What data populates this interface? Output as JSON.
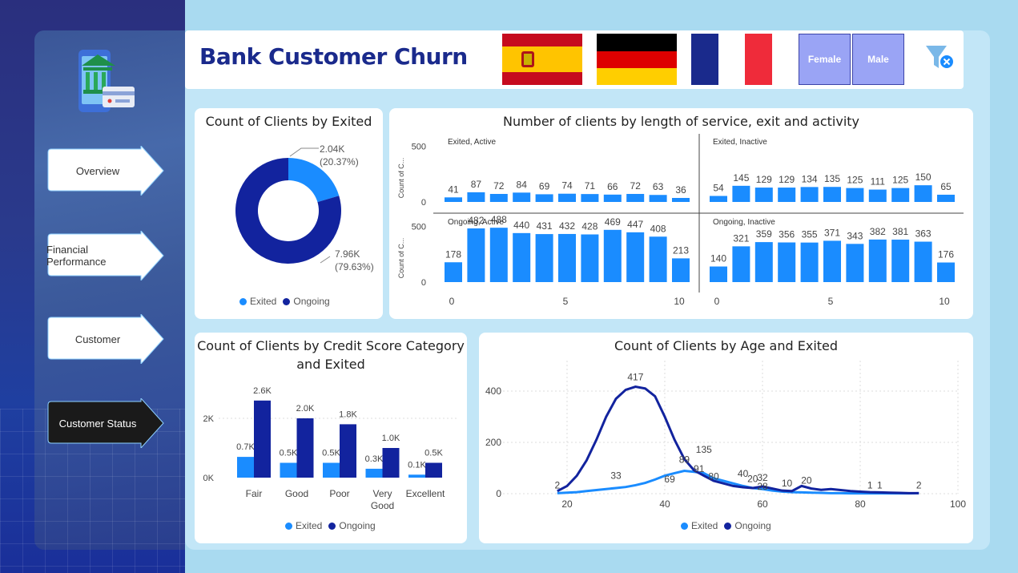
{
  "header": {
    "title": "Bank Customer Churn"
  },
  "slicers": {
    "female": "Female",
    "male": "Male"
  },
  "nav": [
    {
      "label": "Overview"
    },
    {
      "label": "Financial Performance"
    },
    {
      "label": "Customer"
    },
    {
      "label": "Customer Status"
    }
  ],
  "colors": {
    "exited": "#1a8cff",
    "ongoing": "#12239e"
  },
  "legend": {
    "exited": "Exited",
    "ongoing": "Ongoing"
  },
  "donut": {
    "title": "Count of Clients by Exited",
    "exited_label": "2.04K",
    "exited_pct": "(20.37%)",
    "ongoing_label": "7.96K",
    "ongoing_pct": "(79.63%)"
  },
  "tenure": {
    "title": "Number of clients by length of service, exit and activity",
    "ylabel": "Count of C...",
    "panels": [
      {
        "name": "Exited, Active",
        "values": [
          41,
          87,
          72,
          84,
          69,
          74,
          71,
          66,
          72,
          63,
          36
        ]
      },
      {
        "name": "Exited, Inactive",
        "values": [
          54,
          145,
          129,
          129,
          134,
          135,
          125,
          111,
          125,
          150,
          65
        ]
      },
      {
        "name": "Ongoing, Active",
        "values": [
          178,
          482,
          488,
          440,
          431,
          432,
          428,
          469,
          447,
          408,
          213
        ]
      },
      {
        "name": "Ongoing, Inactive",
        "values": [
          140,
          321,
          359,
          356,
          355,
          371,
          343,
          382,
          381,
          363,
          176
        ]
      }
    ],
    "yticks": [
      "500",
      "0"
    ],
    "xticks": [
      "0",
      "5",
      "10"
    ]
  },
  "credit": {
    "title_line1": "Count of Clients by Credit Score Category",
    "title_line2": "and Exited",
    "yticks": [
      "2K",
      "0K"
    ]
  },
  "age": {
    "title": "Count of Clients by Age and Exited",
    "yticks": [
      "400",
      "200",
      "0"
    ],
    "xticks": [
      "20",
      "40",
      "60",
      "80",
      "100"
    ]
  },
  "chart_data": [
    {
      "type": "pie",
      "title": "Count of Clients by Exited",
      "categories": [
        "Exited",
        "Ongoing"
      ],
      "values": [
        2040,
        7960
      ],
      "percent": [
        20.37,
        79.63
      ]
    },
    {
      "type": "bar",
      "title": "Number of clients by length of service, exit and activity",
      "ylabel": "Count of C...",
      "x": [
        0,
        1,
        2,
        3,
        4,
        5,
        6,
        7,
        8,
        9,
        10
      ],
      "series": [
        {
          "name": "Exited, Active",
          "values": [
            41,
            87,
            72,
            84,
            69,
            74,
            71,
            66,
            72,
            63,
            36
          ]
        },
        {
          "name": "Exited, Inactive",
          "values": [
            54,
            145,
            129,
            129,
            134,
            135,
            125,
            111,
            125,
            150,
            65
          ]
        },
        {
          "name": "Ongoing, Active",
          "values": [
            178,
            482,
            488,
            440,
            431,
            432,
            428,
            469,
            447,
            408,
            213
          ]
        },
        {
          "name": "Ongoing, Inactive",
          "values": [
            140,
            321,
            359,
            356,
            355,
            371,
            343,
            382,
            381,
            363,
            176
          ]
        }
      ],
      "ylim": [
        0,
        600
      ]
    },
    {
      "type": "bar",
      "title": "Count of Clients by Credit Score Category and Exited",
      "categories": [
        "Fair",
        "Good",
        "Poor",
        "Very Good",
        "Excellent"
      ],
      "series": [
        {
          "name": "Exited",
          "values": [
            0.7,
            0.5,
            0.5,
            0.3,
            0.1
          ],
          "labels": [
            "0.7K",
            "0.5K",
            "0.5K",
            "0.3K",
            "0.1K"
          ]
        },
        {
          "name": "Ongoing",
          "values": [
            2.6,
            2.0,
            1.8,
            1.0,
            0.5
          ],
          "labels": [
            "2.6K",
            "2.0K",
            "1.8K",
            "1.0K",
            "0.5K"
          ]
        }
      ],
      "ylim": [
        0,
        3
      ]
    },
    {
      "type": "line",
      "title": "Count of Clients by Age and Exited",
      "xlim": [
        15,
        100
      ],
      "ylim": [
        0,
        470
      ],
      "series": [
        {
          "name": "Exited",
          "x": [
            18,
            20,
            22,
            24,
            26,
            28,
            30,
            32,
            34,
            36,
            38,
            40,
            42,
            44,
            46,
            48,
            50,
            52,
            54,
            56,
            58,
            60,
            62,
            64,
            66,
            68,
            70,
            72,
            74,
            76,
            78,
            80,
            82,
            84,
            86,
            88,
            90,
            92
          ],
          "values": [
            2,
            4,
            6,
            10,
            14,
            18,
            22,
            26,
            33,
            42,
            55,
            70,
            80,
            89,
            85,
            80,
            60,
            50,
            40,
            30,
            22,
            18,
            12,
            8,
            6,
            5,
            4,
            3,
            2,
            2,
            1,
            1,
            1,
            1,
            1,
            1,
            1,
            2
          ]
        },
        {
          "name": "Ongoing",
          "x": [
            18,
            20,
            22,
            24,
            26,
            28,
            30,
            32,
            34,
            36,
            38,
            40,
            42,
            44,
            46,
            48,
            50,
            52,
            54,
            56,
            58,
            60,
            62,
            64,
            66,
            68,
            70,
            72,
            74,
            76,
            78,
            80,
            82,
            84,
            86,
            88,
            90,
            92
          ],
          "values": [
            10,
            30,
            70,
            130,
            210,
            300,
            370,
            405,
            417,
            410,
            380,
            300,
            210,
            135,
            91,
            70,
            50,
            40,
            30,
            25,
            22,
            28,
            20,
            12,
            10,
            30,
            20,
            15,
            18,
            14,
            10,
            8,
            6,
            5,
            4,
            3,
            2,
            2
          ]
        }
      ],
      "point_labels": [
        "2",
        "417",
        "89",
        "33",
        "69",
        "135",
        "91",
        "80",
        "40",
        "20",
        "28",
        "32",
        "10",
        "20",
        "1",
        "1",
        "2"
      ]
    }
  ]
}
